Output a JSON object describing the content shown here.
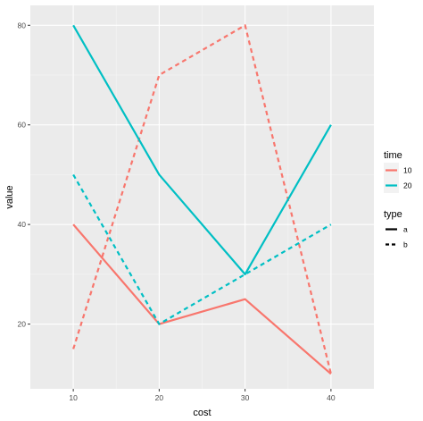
{
  "chart_data": {
    "type": "line",
    "xlabel": "cost",
    "ylabel": "value",
    "xlim": [
      5,
      45
    ],
    "ylim": [
      7,
      84
    ],
    "x_ticks": [
      10,
      20,
      30,
      40
    ],
    "y_ticks": [
      20,
      40,
      60,
      80
    ],
    "x": [
      10,
      20,
      30,
      40
    ],
    "series": [
      {
        "time": "10",
        "type": "a",
        "color": "#F8766D",
        "values": [
          40,
          20,
          25,
          10
        ]
      },
      {
        "time": "10",
        "type": "b",
        "color": "#F8766D",
        "values": [
          15,
          70,
          80,
          10
        ]
      },
      {
        "time": "20",
        "type": "a",
        "color": "#00BFC4",
        "values": [
          80,
          50,
          30,
          60
        ]
      },
      {
        "time": "20",
        "type": "b",
        "color": "#00BFC4",
        "values": [
          50,
          20,
          30,
          40
        ]
      }
    ],
    "legends": [
      {
        "title": "time",
        "entries": [
          {
            "label": "10",
            "color": "#F8766D"
          },
          {
            "label": "20",
            "color": "#00BFC4"
          }
        ]
      },
      {
        "title": "type",
        "entries": [
          {
            "label": "a",
            "linestyle": "solid"
          },
          {
            "label": "b",
            "linestyle": "dashed"
          }
        ]
      }
    ],
    "legend_position": "right",
    "grid": true,
    "panel_background": "#EBEBEB"
  }
}
